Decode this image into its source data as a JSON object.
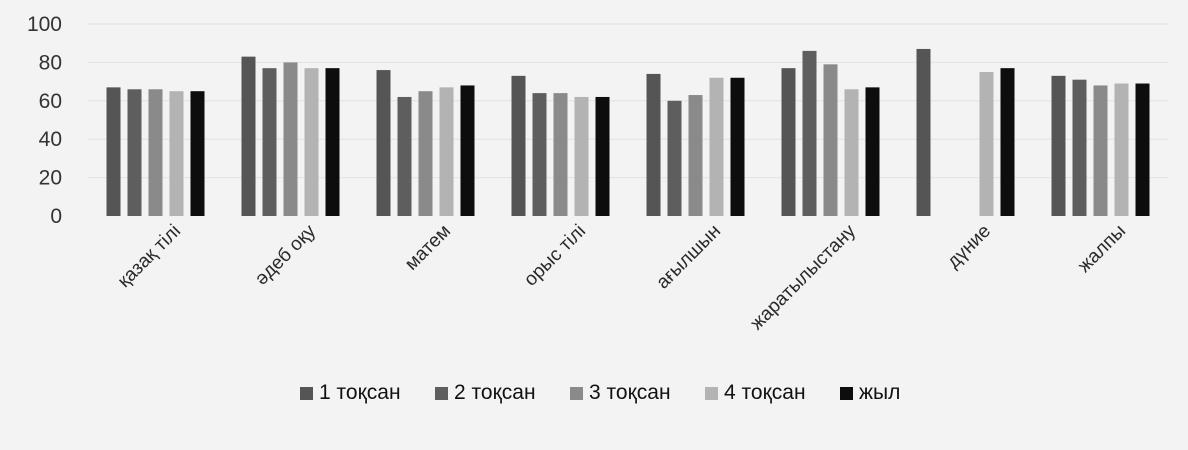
{
  "chart_data": {
    "type": "bar",
    "categories": [
      "қазақ тілі",
      "әдеб оқу",
      "матем",
      "орыс тілі",
      "ағылшын",
      "жаратылыстану",
      "дүние",
      "жалпы"
    ],
    "series": [
      {
        "name": "1 тоқсан",
        "values": [
          67,
          83,
          76,
          73,
          74,
          77,
          87,
          73
        ]
      },
      {
        "name": "2 тоқсан",
        "values": [
          66,
          77,
          62,
          64,
          60,
          86,
          null,
          71
        ]
      },
      {
        "name": "3 тоқсан",
        "values": [
          66,
          80,
          65,
          64,
          63,
          79,
          null,
          68
        ]
      },
      {
        "name": "4 тоқсан",
        "values": [
          65,
          77,
          67,
          62,
          72,
          66,
          75,
          69
        ]
      },
      {
        "name": "жыл",
        "values": [
          65,
          77,
          68,
          62,
          72,
          67,
          77,
          69
        ]
      }
    ],
    "colors": [
      "#555555",
      "#5e5e5e",
      "#8a8a8a",
      "#b3b3b3",
      "#0d0d0d"
    ],
    "yticks": [
      "0",
      "20",
      "40",
      "60",
      "80",
      "100"
    ],
    "ylim": [
      0,
      100
    ],
    "grid": true,
    "legend_position": "bottom",
    "title": "",
    "xlabel": "",
    "ylabel": ""
  }
}
